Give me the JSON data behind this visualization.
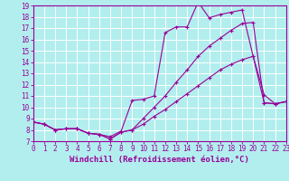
{
  "xlabel": "Windchill (Refroidissement éolien,°C)",
  "ylabel": "",
  "bg_color": "#b2eeee",
  "grid_color": "#ffffff",
  "line_color": "#990099",
  "xmin": 0,
  "xmax": 23,
  "ymin": 7,
  "ymax": 19,
  "xticks": [
    0,
    1,
    2,
    3,
    4,
    5,
    6,
    7,
    8,
    9,
    10,
    11,
    12,
    13,
    14,
    15,
    16,
    17,
    18,
    19,
    20,
    21,
    22,
    23
  ],
  "yticks": [
    7,
    8,
    9,
    10,
    11,
    12,
    13,
    14,
    15,
    16,
    17,
    18,
    19
  ],
  "line1_x": [
    0,
    1,
    2,
    3,
    4,
    5,
    6,
    7,
    8,
    9,
    10,
    11,
    12,
    13,
    14,
    15,
    16,
    17,
    18,
    19,
    20,
    21,
    22,
    23
  ],
  "line1_y": [
    8.7,
    8.5,
    8.0,
    8.1,
    8.1,
    7.7,
    7.6,
    7.4,
    7.9,
    10.6,
    10.7,
    11.0,
    16.6,
    17.1,
    17.1,
    19.3,
    17.9,
    18.2,
    18.4,
    18.6,
    14.5,
    11.1,
    10.3,
    10.5
  ],
  "line2_x": [
    0,
    1,
    2,
    3,
    4,
    5,
    6,
    7,
    8,
    9,
    10,
    11,
    12,
    13,
    14,
    15,
    16,
    17,
    18,
    19,
    20,
    21,
    22,
    23
  ],
  "line2_y": [
    8.7,
    8.5,
    8.0,
    8.1,
    8.1,
    7.7,
    7.6,
    7.2,
    7.8,
    8.0,
    9.0,
    10.0,
    11.0,
    12.2,
    13.3,
    14.5,
    15.4,
    16.1,
    16.8,
    17.4,
    17.5,
    10.4,
    10.3,
    10.5
  ],
  "line3_x": [
    0,
    1,
    2,
    3,
    4,
    5,
    6,
    7,
    8,
    9,
    10,
    11,
    12,
    13,
    14,
    15,
    16,
    17,
    18,
    19,
    20,
    21,
    22,
    23
  ],
  "line3_y": [
    8.7,
    8.5,
    8.0,
    8.1,
    8.1,
    7.7,
    7.6,
    7.2,
    7.8,
    8.0,
    8.5,
    9.2,
    9.8,
    10.5,
    11.2,
    11.9,
    12.6,
    13.3,
    13.8,
    14.2,
    14.5,
    10.4,
    10.3,
    10.5
  ],
  "tick_fontsize": 5.5,
  "xlabel_fontsize": 6.5
}
